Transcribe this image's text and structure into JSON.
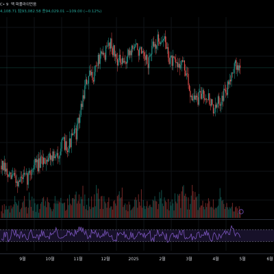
{
  "header": {
    "symbol_tail": "C• 9",
    "source": "맥 파폴라이먼음",
    "ohlc": "4,108.71  轻93,082.58  종94,029.01  −109.00 (−0.12%)"
  },
  "colors": {
    "background": "#000000",
    "up": "#26a69a",
    "down": "#ef5350",
    "rsi_line": "#7e57c2",
    "rsi_band": "#2a1f4a",
    "grid": "#101317",
    "price_line": "#26a69a",
    "text": "#d1d4dc"
  },
  "icons": {
    "volume_marker": "circle-badge-icon"
  },
  "chart_data": [
    {
      "type": "candlestick",
      "title": "",
      "x_labels": [
        "9월",
        "10월",
        "11월",
        "12월",
        "2025",
        "2월",
        "3월",
        "4월",
        "5월",
        "6월"
      ],
      "grid": true,
      "last_price_line": true,
      "series": [
        {
          "kind": "close_path",
          "values": [
            60000,
            58000,
            55000,
            57000,
            54000,
            56000,
            55000,
            58000,
            61000,
            60000,
            62000,
            63000,
            64000,
            62000,
            66000,
            68000,
            67000,
            70000,
            72000,
            80000,
            88000,
            91000,
            92000,
            97000,
            98000,
            100000,
            104000,
            99000,
            97000,
            95000,
            98000,
            101000,
            102000,
            100000,
            97000,
            96000,
            101000,
            103000,
            105000,
            104000,
            98000,
            96000,
            95000,
            97000,
            93000,
            86000,
            84000,
            83000,
            86000,
            85000,
            82000,
            79000,
            83000,
            85000,
            87000,
            94000,
            95000,
            94000
          ]
        }
      ]
    },
    {
      "type": "bar",
      "title": "",
      "series": [
        {
          "kind": "volume",
          "values": [
            0.35,
            0.5,
            0.4,
            0.6,
            0.45,
            0.55,
            0.3,
            0.7,
            0.5,
            0.4,
            0.65,
            0.5,
            0.45,
            0.8,
            0.55,
            0.4,
            0.6,
            0.5,
            0.75,
            0.9,
            0.6,
            0.5,
            0.7,
            0.85,
            0.55,
            0.45,
            0.6,
            0.5,
            0.65,
            0.8,
            0.5,
            0.4,
            0.55,
            0.7,
            0.45,
            0.6,
            0.5,
            0.65,
            0.75,
            0.55,
            0.5,
            0.6,
            0.7,
            0.8,
            0.6,
            0.55,
            0.9,
            0.65,
            0.5,
            0.7,
            0.6,
            0.55,
            0.75,
            0.5,
            0.45,
            0.4,
            0.3,
            0.35
          ]
        }
      ]
    },
    {
      "type": "line",
      "title": "",
      "ylim": [
        0,
        100
      ],
      "bands": [
        30,
        70
      ],
      "series": [
        {
          "kind": "rsi",
          "values": [
            45,
            55,
            40,
            60,
            48,
            52,
            38,
            62,
            50,
            44,
            58,
            47,
            53,
            66,
            49,
            42,
            57,
            51,
            63,
            70,
            55,
            48,
            60,
            52,
            46,
            58,
            50,
            43,
            55,
            61,
            47,
            52,
            44,
            59,
            49,
            56,
            41,
            60,
            53,
            47,
            38,
            52,
            45,
            57,
            43,
            50,
            36,
            54,
            48,
            58,
            42,
            51,
            47,
            60,
            56,
            74,
            58,
            52
          ]
        }
      ]
    }
  ]
}
